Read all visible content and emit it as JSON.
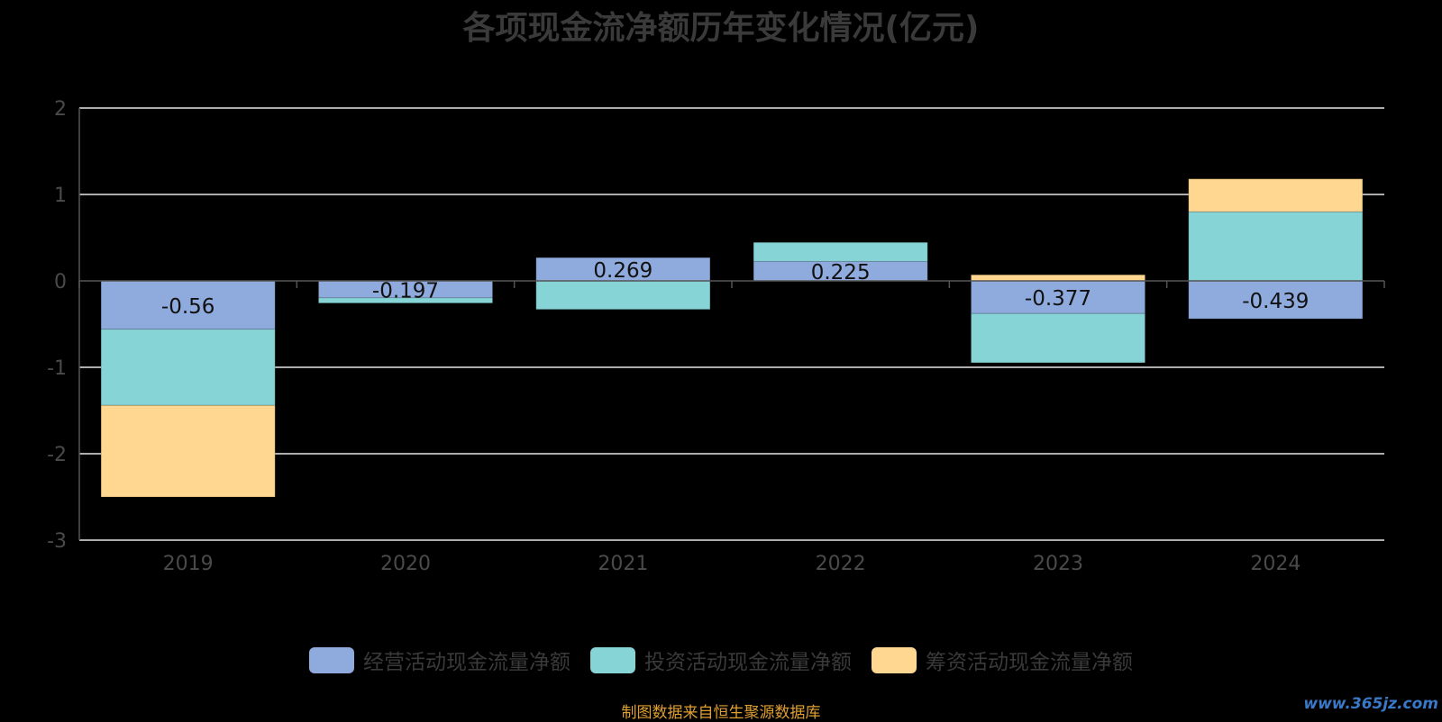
{
  "chart_data": {
    "type": "bar",
    "stacked": true,
    "title": "各项现金流净额历年变化情况(亿元)",
    "categories": [
      "2019",
      "2020",
      "2021",
      "2022",
      "2023",
      "2024"
    ],
    "series": [
      {
        "name": "经营活动现金流量净额",
        "color": "#8faadc",
        "values": [
          -0.56,
          -0.197,
          0.269,
          0.225,
          -0.377,
          -0.439
        ]
      },
      {
        "name": "投资活动现金流量净额",
        "color": "#87d4d6",
        "values": [
          -0.88,
          -0.06,
          -0.33,
          0.22,
          -0.57,
          0.8
        ]
      },
      {
        "name": "筹资活动现金流量净额",
        "color": "#ffd791",
        "values": [
          -1.06,
          0.0,
          0.0,
          0.0,
          0.07,
          0.38
        ]
      }
    ],
    "data_labels": [
      "-0.56",
      "-0.197",
      "0.269",
      "0.225",
      "-0.377",
      "-0.439"
    ],
    "ylim": [
      -3,
      2
    ],
    "yticks": [
      "2",
      "1",
      "0",
      "-1",
      "-2",
      "-3"
    ],
    "grid": true,
    "legend_position": "bottom"
  },
  "footer": {
    "source": "制图数据来自恒生聚源数据库",
    "watermark": "www.365jz.com"
  }
}
